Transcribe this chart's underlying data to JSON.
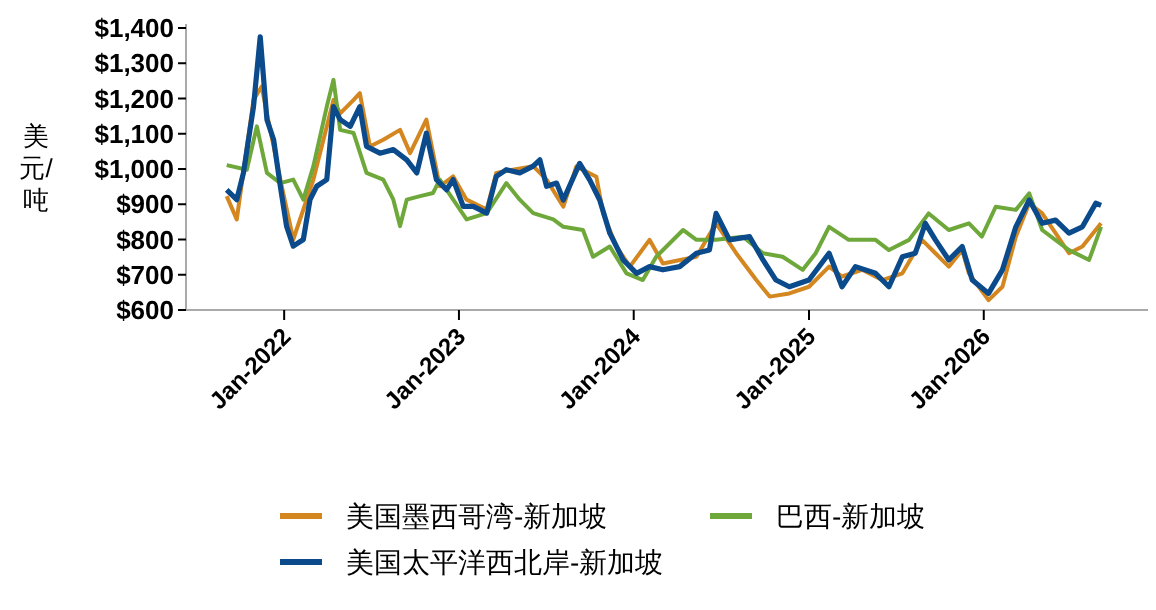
{
  "chart_data": {
    "type": "line",
    "ylabel": "美元/吨",
    "legend": "bottom",
    "grid": false,
    "xlim": [
      "2021-06-10",
      "2026-12-10"
    ],
    "xticks": [
      {
        "value": "2022-01-01",
        "label": "Jan-2022"
      },
      {
        "value": "2023-01-01",
        "label": "Jan-2023"
      },
      {
        "value": "2024-01-01",
        "label": "Jan-2024"
      },
      {
        "value": "2025-01-01",
        "label": "Jan-2025"
      },
      {
        "value": "2026-01-01",
        "label": "Jan-2026"
      }
    ],
    "ylim": [
      600,
      1400
    ],
    "yticks": [
      {
        "value": 600,
        "label": "$600"
      },
      {
        "value": 700,
        "label": "$700"
      },
      {
        "value": 800,
        "label": "$800"
      },
      {
        "value": 900,
        "label": "$900"
      },
      {
        "value": 1000,
        "label": "$1,000"
      },
      {
        "value": 1100,
        "label": "$1,100"
      },
      {
        "value": 1200,
        "label": "$1,200"
      },
      {
        "value": 1300,
        "label": "$1,300"
      },
      {
        "value": 1400,
        "label": "$1,400"
      }
    ],
    "series": [
      {
        "name": "美国墨西哥湾-新加坡",
        "color": "#d4861f",
        "x": [
          "2021-09-03",
          "2021-09-24",
          "2021-10-29",
          "2021-11-15",
          "2021-11-26",
          "2021-12-24",
          "2022-01-20",
          "2022-03-03",
          "2022-04-14",
          "2022-04-28",
          "2022-05-26",
          "2022-06-08",
          "2022-06-29",
          "2022-07-27",
          "2022-08-31",
          "2022-09-21",
          "2022-10-25",
          "2022-11-22",
          "2022-12-20",
          "2023-01-17",
          "2023-02-28",
          "2023-03-20",
          "2023-04-24",
          "2023-06-05",
          "2023-07-03",
          "2023-08-07",
          "2023-09-03",
          "2023-10-15",
          "2023-10-29",
          "2023-11-26",
          "2023-12-24",
          "2024-02-03",
          "2024-03-02",
          "2024-05-11",
          "2024-06-21",
          "2024-08-02",
          "2024-09-13",
          "2024-10-11",
          "2024-11-21",
          "2025-01-01",
          "2025-02-12",
          "2025-03-11",
          "2025-04-22",
          "2025-06-03",
          "2025-07-15",
          "2025-08-25",
          "2025-09-22",
          "2025-10-20",
          "2025-11-17",
          "2025-12-01",
          "2026-01-11",
          "2026-02-09",
          "2026-03-09",
          "2026-04-06",
          "2026-05-03",
          "2026-05-31",
          "2026-06-28",
          "2026-07-26",
          "2026-09-03"
        ],
        "values": [
          923,
          857,
          1196,
          1234,
          1158,
          970,
          800,
          970,
          1196,
          1158,
          1196,
          1215,
          1064,
          1083,
          1111,
          1045,
          1140,
          951,
          979,
          913,
          885,
          989,
          998,
          1008,
          970,
          893,
          1007,
          978,
          874,
          780,
          723,
          799,
          732,
          751,
          846,
          761,
          685,
          638,
          647,
          666,
          723,
          695,
          714,
          685,
          704,
          799,
          761,
          723,
          770,
          704,
          628,
          666,
          808,
          903,
          874,
          818,
          761,
          780,
          846
        ]
      },
      {
        "name": "巴西-新加坡",
        "color": "#6fa83a",
        "x": [
          "2021-09-03",
          "2021-10-15",
          "2021-11-05",
          "2021-11-26",
          "2021-12-24",
          "2022-01-20",
          "2022-02-10",
          "2022-03-03",
          "2022-03-31",
          "2022-04-14",
          "2022-04-28",
          "2022-05-26",
          "2022-06-22",
          "2022-07-27",
          "2022-08-17",
          "2022-08-31",
          "2022-09-14",
          "2022-10-12",
          "2022-11-08",
          "2022-11-22",
          "2022-12-20",
          "2023-01-17",
          "2023-02-28",
          "2023-04-10",
          "2023-05-08",
          "2023-06-05",
          "2023-07-17",
          "2023-08-07",
          "2023-09-17",
          "2023-10-08",
          "2023-11-12",
          "2023-12-17",
          "2024-01-20",
          "2024-02-17",
          "2024-04-13",
          "2024-05-11",
          "2024-06-21",
          "2024-08-16",
          "2024-09-27",
          "2024-11-07",
          "2024-12-19",
          "2025-01-15",
          "2025-02-12",
          "2025-03-25",
          "2025-05-20",
          "2025-06-17",
          "2025-07-29",
          "2025-09-08",
          "2025-10-20",
          "2025-12-01",
          "2025-12-28",
          "2026-01-26",
          "2026-03-09",
          "2026-04-06",
          "2026-05-03",
          "2026-06-28",
          "2026-08-09",
          "2026-09-03"
        ],
        "values": [
          1011,
          998,
          1121,
          989,
          960,
          970,
          913,
          1008,
          1177,
          1253,
          1111,
          1102,
          989,
          970,
          913,
          838,
          913,
          923,
          932,
          970,
          913,
          857,
          875,
          960,
          913,
          875,
          857,
          836,
          827,
          751,
          780,
          704,
          685,
          751,
          827,
          799,
          799,
          808,
          761,
          751,
          714,
          761,
          836,
          799,
          799,
          770,
          799,
          874,
          827,
          846,
          808,
          893,
          884,
          931,
          827,
          770,
          742,
          836
        ]
      },
      {
        "name": "美国太平洋西北岸-新加坡",
        "color": "#0b4a8b",
        "x": [
          "2021-09-03",
          "2021-09-24",
          "2021-10-08",
          "2021-10-29",
          "2021-11-12",
          "2021-11-26",
          "2021-12-10",
          "2021-12-24",
          "2022-01-06",
          "2022-01-20",
          "2022-02-10",
          "2022-02-24",
          "2022-03-10",
          "2022-03-31",
          "2022-04-14",
          "2022-04-28",
          "2022-05-19",
          "2022-06-08",
          "2022-06-22",
          "2022-07-20",
          "2022-08-17",
          "2022-09-14",
          "2022-10-05",
          "2022-10-25",
          "2022-11-15",
          "2022-12-06",
          "2022-12-20",
          "2023-01-10",
          "2023-01-31",
          "2023-02-28",
          "2023-03-20",
          "2023-04-10",
          "2023-05-08",
          "2023-06-05",
          "2023-06-19",
          "2023-07-03",
          "2023-07-24",
          "2023-08-07",
          "2023-09-10",
          "2023-10-01",
          "2023-10-22",
          "2023-11-12",
          "2023-12-10",
          "2024-01-07",
          "2024-02-03",
          "2024-03-02",
          "2024-04-06",
          "2024-05-11",
          "2024-06-07",
          "2024-06-21",
          "2024-07-19",
          "2024-08-30",
          "2024-09-27",
          "2024-10-24",
          "2024-11-21",
          "2025-01-01",
          "2025-02-12",
          "2025-03-11",
          "2025-04-08",
          "2025-05-20",
          "2025-06-17",
          "2025-07-15",
          "2025-08-11",
          "2025-09-01",
          "2025-09-22",
          "2025-10-20",
          "2025-11-17",
          "2025-12-08",
          "2026-01-11",
          "2026-02-09",
          "2026-03-09",
          "2026-04-06",
          "2026-05-03",
          "2026-05-31",
          "2026-06-28",
          "2026-07-26",
          "2026-08-23",
          "2026-09-03"
        ],
        "values": [
          941,
          913,
          989,
          1177,
          1375,
          1140,
          1083,
          951,
          838,
          781,
          800,
          913,
          951,
          970,
          1177,
          1140,
          1121,
          1177,
          1064,
          1045,
          1055,
          1026,
          989,
          1102,
          970,
          941,
          970,
          894,
          894,
          875,
          979,
          998,
          989,
          1008,
          1026,
          951,
          960,
          912,
          1016,
          969,
          912,
          818,
          742,
          704,
          723,
          714,
          723,
          761,
          770,
          874,
          799,
          808,
          742,
          685,
          666,
          685,
          761,
          666,
          723,
          704,
          666,
          751,
          761,
          846,
          799,
          742,
          780,
          685,
          647,
          714,
          836,
          912,
          846,
          855,
          818,
          836,
          903,
          897
        ]
      }
    ]
  }
}
